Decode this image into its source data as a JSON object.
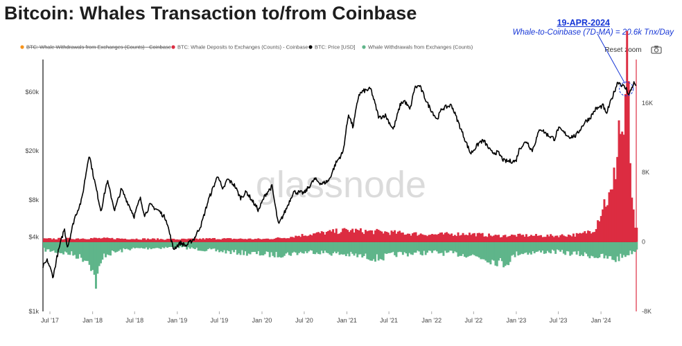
{
  "title": "Bitcoin: Whales Transaction to/from Coinbase",
  "annotation": {
    "date": "19-APR-2024",
    "text": "Whale-to-Coinbase (7D-MA) = 20.6k Tnx/Day"
  },
  "controls": {
    "reset_zoom": "Reset zoom",
    "camera": "camera-icon"
  },
  "watermark": "glassnode",
  "colors": {
    "price": "#000000",
    "deposits": "#dc2c41",
    "withdrawals": "#5fb58a",
    "coinbase_withdrawals": "#f7931a",
    "annotation": "#1636d6",
    "right_axis": "#dc2c41"
  },
  "chart_data": {
    "type": "line",
    "title": "Bitcoin: Whales Transaction to/from Coinbase",
    "legend": [
      {
        "name": "BTC: Whale Withdrawals from Exchanges (Counts) - Coinbase",
        "color": "#f7931a",
        "hidden": true
      },
      {
        "name": "BTC: Whale Deposits to Exchanges (Counts) - Coinbase",
        "color": "#dc2c41",
        "hidden": false
      },
      {
        "name": "BTC: Price [USD]",
        "color": "#000000",
        "hidden": false
      },
      {
        "name": "Whale Withdrawals from Exchanges (Counts)",
        "color": "#5fb58a",
        "hidden": false
      }
    ],
    "legend_position": "top-left",
    "x_ticks": [
      "Jul '17",
      "Jan '18",
      "Jul '18",
      "Jan '19",
      "Jul '19",
      "Jan '20",
      "Jul '20",
      "Jan '21",
      "Jul '21",
      "Jan '22",
      "Jul '22",
      "Jan '23",
      "Jul '23",
      "Jan '24"
    ],
    "y_left": {
      "scale": "log",
      "ticks": [
        "$1k",
        "$4k",
        "$8k",
        "$20k",
        "$60k"
      ],
      "tick_values": [
        1000,
        4000,
        8000,
        20000,
        60000
      ]
    },
    "y_right": {
      "ticks": [
        "-8K",
        "0",
        "8K",
        "16K"
      ],
      "tick_values": [
        -8000,
        0,
        8000,
        16000
      ],
      "range": [
        -8000,
        21000
      ]
    },
    "x_range": [
      "2017-06-01",
      "2024-06-01"
    ],
    "series": [
      {
        "name": "BTC: Price [USD]",
        "axis": "left",
        "points": [
          [
            "2017-06-01",
            2300
          ],
          [
            "2017-06-20",
            2600
          ],
          [
            "2017-07-15",
            1900
          ],
          [
            "2017-08-01",
            2800
          ],
          [
            "2017-09-01",
            4700
          ],
          [
            "2017-09-15",
            3300
          ],
          [
            "2017-10-15",
            5700
          ],
          [
            "2017-11-15",
            8000
          ],
          [
            "2017-12-17",
            19000
          ],
          [
            "2018-01-01",
            13500
          ],
          [
            "2018-02-06",
            6500
          ],
          [
            "2018-03-05",
            11500
          ],
          [
            "2018-04-06",
            6600
          ],
          [
            "2018-05-05",
            9800
          ],
          [
            "2018-06-29",
            5900
          ],
          [
            "2018-07-25",
            8300
          ],
          [
            "2018-08-14",
            6000
          ],
          [
            "2018-09-05",
            7300
          ],
          [
            "2018-10-15",
            6500
          ],
          [
            "2018-11-14",
            5600
          ],
          [
            "2018-12-15",
            3200
          ],
          [
            "2019-01-15",
            3600
          ],
          [
            "2019-02-08",
            3400
          ],
          [
            "2019-03-15",
            3900
          ],
          [
            "2019-04-15",
            5100
          ],
          [
            "2019-05-15",
            8000
          ],
          [
            "2019-06-26",
            12800
          ],
          [
            "2019-07-15",
            9500
          ],
          [
            "2019-08-05",
            11800
          ],
          [
            "2019-09-05",
            10500
          ],
          [
            "2019-09-30",
            8300
          ],
          [
            "2019-10-26",
            9300
          ],
          [
            "2019-12-17",
            6600
          ],
          [
            "2020-01-15",
            8800
          ],
          [
            "2020-02-13",
            10300
          ],
          [
            "2020-03-12",
            5000
          ],
          [
            "2020-04-15",
            6800
          ],
          [
            "2020-05-15",
            9300
          ],
          [
            "2020-07-01",
            9100
          ],
          [
            "2020-08-15",
            11800
          ],
          [
            "2020-09-15",
            10800
          ],
          [
            "2020-10-15",
            11500
          ],
          [
            "2020-11-15",
            16000
          ],
          [
            "2020-12-15",
            19500
          ],
          [
            "2021-01-08",
            40000
          ],
          [
            "2021-01-27",
            31000
          ],
          [
            "2021-02-21",
            57000
          ],
          [
            "2021-03-13",
            61000
          ],
          [
            "2021-04-14",
            63500
          ],
          [
            "2021-05-19",
            37000
          ],
          [
            "2021-06-15",
            39000
          ],
          [
            "2021-07-20",
            29800
          ],
          [
            "2021-08-20",
            48000
          ],
          [
            "2021-09-06",
            51000
          ],
          [
            "2021-09-30",
            43000
          ],
          [
            "2021-10-20",
            65000
          ],
          [
            "2021-11-10",
            67500
          ],
          [
            "2021-12-15",
            48000
          ],
          [
            "2022-01-24",
            36000
          ],
          [
            "2022-02-15",
            44000
          ],
          [
            "2022-03-28",
            47000
          ],
          [
            "2022-05-12",
            28500
          ],
          [
            "2022-06-18",
            19000
          ],
          [
            "2022-07-30",
            23800
          ],
          [
            "2022-08-15",
            24000
          ],
          [
            "2022-09-15",
            19500
          ],
          [
            "2022-10-15",
            19300
          ],
          [
            "2022-11-10",
            16500
          ],
          [
            "2022-12-30",
            16500
          ],
          [
            "2023-01-15",
            21000
          ],
          [
            "2023-02-15",
            24000
          ],
          [
            "2023-03-10",
            20000
          ],
          [
            "2023-04-14",
            30500
          ],
          [
            "2023-05-15",
            27000
          ],
          [
            "2023-06-15",
            25000
          ],
          [
            "2023-07-01",
            30500
          ],
          [
            "2023-08-18",
            26000
          ],
          [
            "2023-09-15",
            26500
          ],
          [
            "2023-10-25",
            34500
          ],
          [
            "2023-11-15",
            37000
          ],
          [
            "2023-12-08",
            43500
          ],
          [
            "2024-01-11",
            46500
          ],
          [
            "2024-01-23",
            39500
          ],
          [
            "2024-02-15",
            52000
          ],
          [
            "2024-03-14",
            73000
          ],
          [
            "2024-04-19",
            63500
          ],
          [
            "2024-05-01",
            57000
          ],
          [
            "2024-05-21",
            71000
          ],
          [
            "2024-05-31",
            68000
          ]
        ]
      },
      {
        "name": "BTC: Whale Deposits to Exchanges (Counts) - Coinbase",
        "axis": "right",
        "type": "area",
        "points": [
          [
            "2017-06-01",
            350
          ],
          [
            "2018-01-01",
            420
          ],
          [
            "2019-01-01",
            300
          ],
          [
            "2019-06-01",
            380
          ],
          [
            "2020-01-01",
            330
          ],
          [
            "2020-04-01",
            480
          ],
          [
            "2020-07-01",
            820
          ],
          [
            "2021-01-01",
            1350
          ],
          [
            "2021-03-01",
            1250
          ],
          [
            "2021-06-01",
            1150
          ],
          [
            "2021-09-01",
            1000
          ],
          [
            "2022-01-01",
            850
          ],
          [
            "2022-06-01",
            950
          ],
          [
            "2022-10-01",
            700
          ],
          [
            "2023-01-01",
            750
          ],
          [
            "2023-06-01",
            700
          ],
          [
            "2023-10-01",
            850
          ],
          [
            "2023-12-01",
            1500
          ],
          [
            "2024-01-10",
            4500
          ],
          [
            "2024-02-15",
            5500
          ],
          [
            "2024-03-01",
            9000
          ],
          [
            "2024-03-15",
            14000
          ],
          [
            "2024-04-01",
            11500
          ],
          [
            "2024-04-19",
            20600
          ],
          [
            "2024-05-05",
            7000
          ],
          [
            "2024-05-20",
            1500
          ],
          [
            "2024-05-31",
            1300
          ]
        ]
      },
      {
        "name": "Whale Withdrawals from Exchanges (Counts)",
        "axis": "right",
        "type": "area",
        "points": [
          [
            "2017-06-01",
            -900
          ],
          [
            "2017-10-01",
            -1400
          ],
          [
            "2017-12-15",
            -2200
          ],
          [
            "2018-01-10",
            -4700
          ],
          [
            "2018-02-15",
            -1500
          ],
          [
            "2018-06-01",
            -800
          ],
          [
            "2019-01-01",
            -600
          ],
          [
            "2019-06-01",
            -1000
          ],
          [
            "2019-09-01",
            -1200
          ],
          [
            "2020-03-01",
            -1500
          ],
          [
            "2020-08-01",
            -1100
          ],
          [
            "2021-01-15",
            -1500
          ],
          [
            "2021-05-15",
            -1900
          ],
          [
            "2021-08-01",
            -1400
          ],
          [
            "2022-01-01",
            -1200
          ],
          [
            "2022-06-15",
            -1500
          ],
          [
            "2022-11-10",
            -2500
          ],
          [
            "2023-01-01",
            -1300
          ],
          [
            "2023-06-01",
            -1100
          ],
          [
            "2023-11-01",
            -1500
          ],
          [
            "2024-03-01",
            -2000
          ],
          [
            "2024-05-31",
            -900
          ]
        ]
      }
    ]
  }
}
